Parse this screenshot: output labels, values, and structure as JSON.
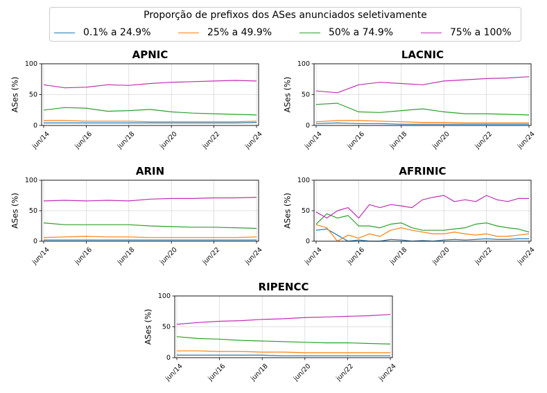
{
  "chart_data": {
    "type": "line",
    "legend": {
      "title": "Proporção de prefixos dos ASes anunciados seletivamente",
      "placement": "top-center",
      "entries": [
        "0.1% a 24.9%",
        "25% a 49.9%",
        "50% a 74.9%",
        "75% a 100%"
      ]
    },
    "colors": [
      "#1f77b4",
      "#ff7f0e",
      "#2ca02c",
      "#c02fb3"
    ],
    "x_ticks": [
      "jun/14",
      "jun/16",
      "jun/18",
      "jun/20",
      "jun/22",
      "jun/24"
    ],
    "xlim": [
      "2014-06",
      "2024-06"
    ],
    "y_ticks": [
      0,
      50,
      100
    ],
    "ylim": [
      0,
      100
    ],
    "ylabel": "ASes (%)",
    "grid": true,
    "panels": [
      {
        "title": "APNIC",
        "x": [
          "2014-06",
          "2015-06",
          "2016-06",
          "2017-06",
          "2018-06",
          "2019-06",
          "2020-06",
          "2021-06",
          "2022-06",
          "2023-06",
          "2024-06"
        ],
        "series": [
          {
            "name": "0.1% a 24.9%",
            "values": [
              4,
              4,
              4,
              4,
              4,
              4,
              4,
              4,
              4,
              4,
              5
            ]
          },
          {
            "name": "25% a 49.9%",
            "values": [
              8,
              8,
              7,
              7,
              7,
              6,
              6,
              6,
              6,
              6,
              7
            ]
          },
          {
            "name": "50% a 74.9%",
            "values": [
              25,
              29,
              28,
              23,
              24,
              26,
              22,
              20,
              19,
              18,
              17
            ]
          },
          {
            "name": "75% a 100%",
            "values": [
              66,
              61,
              62,
              66,
              65,
              68,
              70,
              71,
              72,
              73,
              72
            ]
          }
        ]
      },
      {
        "title": "LACNIC",
        "x": [
          "2014-06",
          "2015-06",
          "2016-06",
          "2017-06",
          "2018-06",
          "2019-06",
          "2020-06",
          "2021-06",
          "2022-06",
          "2023-06",
          "2024-06"
        ],
        "series": [
          {
            "name": "0.1% a 24.9%",
            "values": [
              3,
              4,
              3,
              3,
              2,
              2,
              2,
              2,
              2,
              2,
              2
            ]
          },
          {
            "name": "25% a 49.9%",
            "values": [
              6,
              8,
              8,
              7,
              6,
              5,
              5,
              4,
              4,
              4,
              4
            ]
          },
          {
            "name": "50% a 74.9%",
            "values": [
              34,
              36,
              22,
              21,
              24,
              27,
              22,
              19,
              19,
              18,
              17
            ]
          },
          {
            "name": "75% a 100%",
            "values": [
              56,
              53,
              66,
              70,
              68,
              66,
              72,
              74,
              76,
              77,
              79
            ]
          }
        ]
      },
      {
        "title": "ARIN",
        "x": [
          "2014-06",
          "2015-06",
          "2016-06",
          "2017-06",
          "2018-06",
          "2019-06",
          "2020-06",
          "2021-06",
          "2022-06",
          "2023-06",
          "2024-06"
        ],
        "series": [
          {
            "name": "0.1% a 24.9%",
            "values": [
              2,
              2,
              2,
              2,
              2,
              2,
              2,
              2,
              2,
              2,
              2
            ]
          },
          {
            "name": "25% a 49.9%",
            "values": [
              6,
              7,
              8,
              7,
              7,
              6,
              6,
              6,
              6,
              6,
              7
            ]
          },
          {
            "name": "50% a 74.9%",
            "values": [
              30,
              27,
              27,
              27,
              27,
              25,
              24,
              23,
              23,
              22,
              21
            ]
          },
          {
            "name": "75% a 100%",
            "values": [
              66,
              67,
              66,
              67,
              66,
              69,
              70,
              70,
              71,
              71,
              72
            ]
          }
        ]
      },
      {
        "title": "AFRINIC",
        "x": [
          "2014-06",
          "2014-12",
          "2015-06",
          "2015-12",
          "2016-06",
          "2016-12",
          "2017-06",
          "2017-12",
          "2018-06",
          "2018-12",
          "2019-06",
          "2019-12",
          "2020-06",
          "2020-12",
          "2021-06",
          "2021-12",
          "2022-06",
          "2022-12",
          "2023-06",
          "2023-12",
          "2024-06"
        ],
        "series": [
          {
            "name": "0.1% a 24.9%",
            "values": [
              18,
              20,
              10,
              0,
              2,
              0,
              0,
              3,
              2,
              0,
              1,
              0,
              2,
              3,
              2,
              3,
              4,
              3,
              3,
              4,
              4
            ]
          },
          {
            "name": "25% a 49.9%",
            "values": [
              27,
              22,
              0,
              10,
              5,
              12,
              8,
              18,
              22,
              18,
              15,
              12,
              12,
              15,
              12,
              10,
              12,
              8,
              8,
              10,
              12
            ]
          },
          {
            "name": "50% a 74.9%",
            "values": [
              28,
              45,
              38,
              42,
              25,
              25,
              22,
              28,
              30,
              22,
              18,
              18,
              18,
              20,
              22,
              28,
              30,
              25,
              22,
              20,
              15
            ]
          },
          {
            "name": "75% a 100%",
            "values": [
              48,
              38,
              50,
              55,
              38,
              60,
              55,
              60,
              58,
              55,
              68,
              72,
              75,
              65,
              68,
              65,
              75,
              68,
              65,
              70,
              70
            ]
          }
        ]
      },
      {
        "title": "RIPENCC",
        "x": [
          "2014-06",
          "2015-06",
          "2016-06",
          "2017-06",
          "2018-06",
          "2019-06",
          "2020-06",
          "2021-06",
          "2022-06",
          "2023-06",
          "2024-06"
        ],
        "series": [
          {
            "name": "0.1% a 24.9%",
            "values": [
              4,
              4,
              4,
              4,
              4,
              3,
              3,
              3,
              3,
              3,
              3
            ]
          },
          {
            "name": "25% a 49.9%",
            "values": [
              11,
              11,
              10,
              10,
              9,
              9,
              8,
              8,
              8,
              8,
              8
            ]
          },
          {
            "name": "50% a 74.9%",
            "values": [
              34,
              31,
              30,
              28,
              27,
              26,
              25,
              24,
              24,
              23,
              22
            ]
          },
          {
            "name": "75% a 100%",
            "values": [
              54,
              57,
              59,
              60,
              62,
              63,
              65,
              66,
              67,
              68,
              70
            ]
          }
        ]
      }
    ]
  }
}
